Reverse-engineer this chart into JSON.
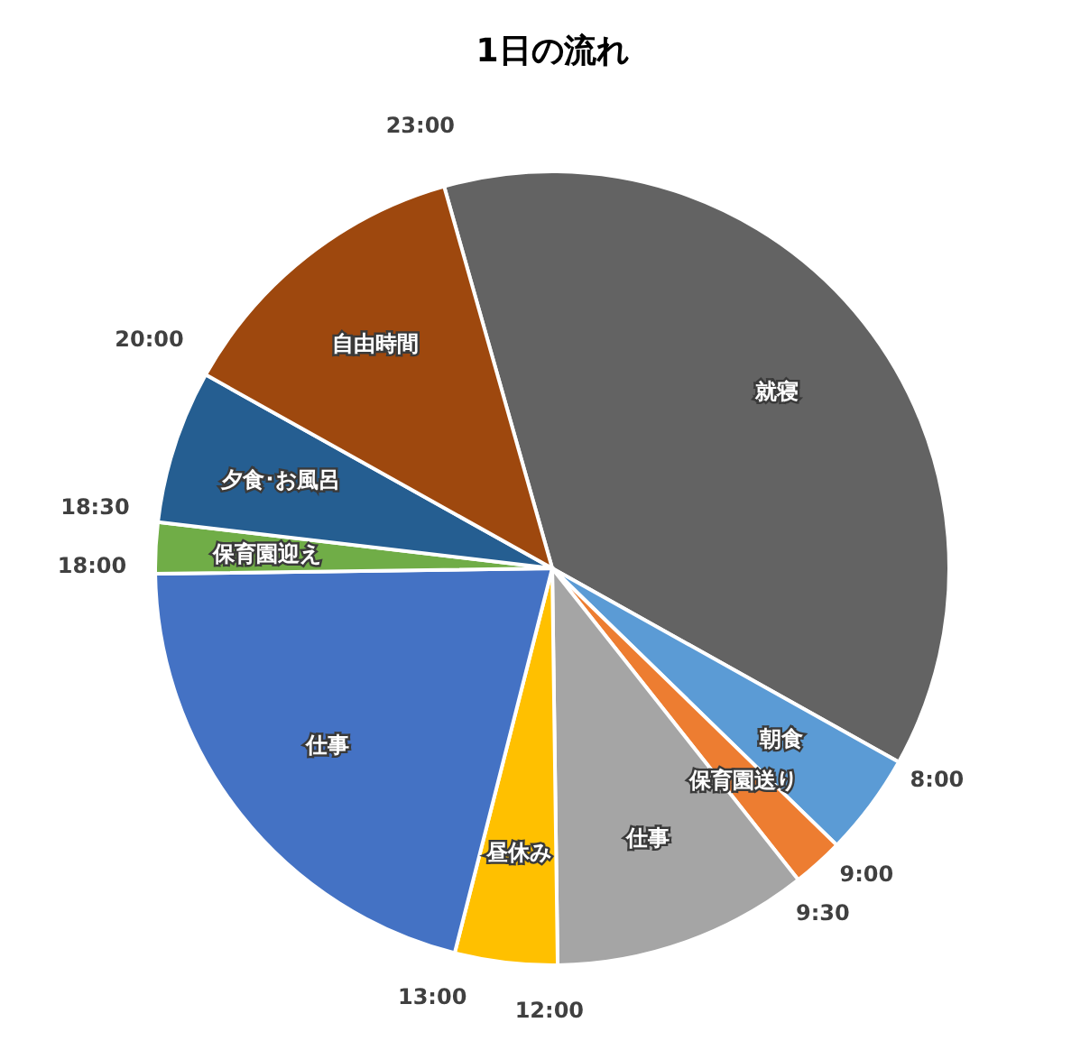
{
  "chart_data": {
    "type": "pie",
    "title": "1日の流れ",
    "categories": [
      "就寝",
      "朝食",
      "保育園送り",
      "仕事",
      "昼休み",
      "仕事",
      "保育園迎え",
      "夕食･お風呂",
      "自由時間"
    ],
    "values": [
      37.5,
      4.17,
      2.08,
      10.42,
      4.17,
      20.83,
      2.08,
      6.25,
      12.5
    ],
    "colors": [
      "#636363",
      "#5b9bd5",
      "#ed7d31",
      "#a5a5a5",
      "#ffc000",
      "#4472c4",
      "#70ad47",
      "#255e91",
      "#9e480e"
    ],
    "annotations": [
      "8:00",
      "9:00",
      "9:30",
      "12:00",
      "13:00",
      "18:00",
      "18:30",
      "20:00",
      "23:00"
    ]
  }
}
